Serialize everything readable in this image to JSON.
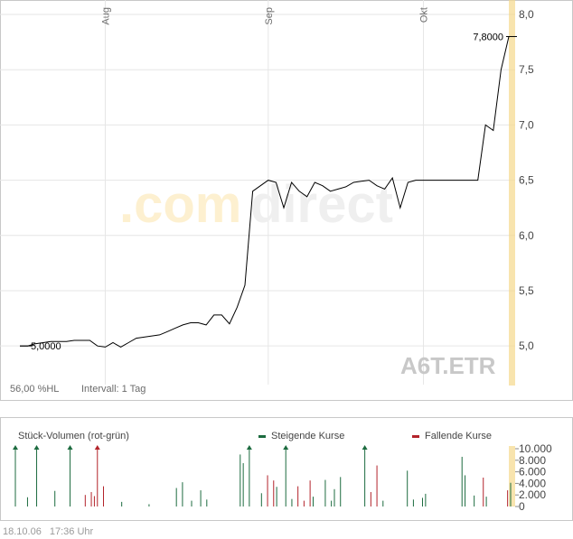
{
  "watermark": {
    "prefix": ".com",
    "suffix": "direct"
  },
  "symbol": "A6T.ETR",
  "info": {
    "hl": "56,00 %HL",
    "interval": "Intervall: 1 Tag"
  },
  "footer": {
    "date": "18.10.06",
    "time": "17:36 Uhr"
  },
  "colors": {
    "rising": "#1c6b3f",
    "falling": "#b3232a",
    "line": "#000000",
    "highlight": "#f5d88c"
  },
  "chart_data": [
    {
      "type": "line",
      "ylim": [
        4.65,
        8.0
      ],
      "y_ticks": [
        "8,0",
        "7,5",
        "7,0",
        "6,5",
        "6,0",
        "5,5",
        "5,0"
      ],
      "y_tick_values": [
        8.0,
        7.5,
        7.0,
        6.5,
        6.0,
        5.5,
        5.0
      ],
      "x_month_labels": [
        {
          "label": "Aug",
          "day": 11
        },
        {
          "label": "Sep",
          "day": 32
        },
        {
          "label": "Okt",
          "day": 52
        }
      ],
      "start_label": "5,0000",
      "last_label": "7,8000",
      "x": [
        0,
        1,
        2,
        3,
        4,
        5,
        6,
        7,
        8,
        9,
        10,
        11,
        12,
        13,
        14,
        15,
        16,
        17,
        18,
        19,
        20,
        21,
        22,
        23,
        24,
        25,
        26,
        27,
        28,
        29,
        30,
        31,
        32,
        33,
        34,
        35,
        36,
        37,
        38,
        39,
        40,
        41,
        42,
        43,
        44,
        45,
        46,
        47,
        48,
        49,
        50,
        51,
        52,
        53,
        54,
        55,
        56,
        57,
        58,
        59,
        60,
        61,
        62,
        63
      ],
      "values": [
        5.0,
        5.0,
        5.02,
        5.03,
        5.04,
        5.04,
        5.04,
        5.05,
        5.05,
        5.05,
        5.0,
        4.99,
        5.03,
        4.99,
        5.03,
        5.07,
        5.08,
        5.09,
        5.1,
        5.13,
        5.16,
        5.19,
        5.21,
        5.21,
        5.19,
        5.28,
        5.28,
        5.2,
        5.35,
        5.55,
        6.4,
        6.45,
        6.5,
        6.48,
        6.25,
        6.48,
        6.4,
        6.35,
        6.48,
        6.45,
        6.4,
        6.42,
        6.44,
        6.48,
        6.49,
        6.5,
        6.45,
        6.42,
        6.52,
        6.25,
        6.48,
        6.5,
        6.5,
        6.5,
        6.5,
        6.5,
        6.5,
        6.5,
        6.5,
        6.5,
        7.0,
        6.95,
        7.5,
        7.8
      ]
    },
    {
      "type": "bar",
      "title": "Stück-Volumen (rot-grün)",
      "legend": [
        {
          "name": "Steigende Kurse",
          "color": "#1c6b3f"
        },
        {
          "name": "Fallende Kurse",
          "color": "#b3232a"
        }
      ],
      "ylim": [
        0,
        10000
      ],
      "y_ticks": [
        "10.000",
        "8.000",
        "6.000",
        "4.000",
        "2.000",
        "0"
      ],
      "y_tick_values": [
        10000,
        8000,
        6000,
        4000,
        2000,
        0
      ],
      "values": [
        10000,
        0,
        0,
        0,
        1600,
        0,
        0,
        10000,
        0,
        0,
        0,
        0,
        0,
        2700,
        0,
        0,
        0,
        0,
        10000,
        0,
        0,
        0,
        0,
        2000,
        0,
        2500,
        1800,
        10000,
        0,
        3500,
        0,
        0,
        0,
        0,
        0,
        800,
        0,
        0,
        0,
        0,
        0,
        0,
        0,
        0,
        400,
        0,
        0,
        0,
        0,
        0,
        0,
        0,
        0,
        3200,
        0,
        4200,
        0,
        0,
        1000,
        0,
        0,
        2800,
        0,
        1200,
        0,
        0,
        0,
        0,
        0,
        0,
        0,
        0,
        0,
        0,
        9000,
        7500,
        0,
        10000,
        0,
        0,
        0,
        2300,
        0,
        5400,
        0,
        4500,
        3400,
        0,
        0,
        10000,
        0,
        1300,
        0,
        3500,
        0,
        1000,
        0,
        4500,
        1700,
        0,
        0,
        0,
        4600,
        0,
        1000,
        3000,
        0,
        5100,
        0,
        0,
        0,
        0,
        0,
        0,
        0,
        10000,
        0,
        2500,
        0,
        7100,
        0,
        1000,
        0,
        0,
        0,
        0,
        0,
        0,
        0,
        6200,
        0,
        1200,
        0,
        0,
        1500,
        2200,
        0,
        0,
        0,
        0,
        0,
        0,
        0,
        0,
        0,
        0,
        0,
        8600,
        5400,
        0,
        0,
        1900,
        0,
        0,
        5000,
        1700,
        0,
        0,
        0,
        0,
        0,
        0,
        2800,
        4100
      ],
      "directions": [
        "up",
        "up",
        "up",
        "up",
        "up",
        "up",
        "up",
        "up",
        "up",
        "up",
        "up",
        "up",
        "up",
        "up",
        "up",
        "up",
        "up",
        "up",
        "up",
        "up",
        "up",
        "up",
        "up",
        "down",
        "up",
        "down",
        "down",
        "down",
        "up",
        "down",
        "up",
        "up",
        "up",
        "up",
        "up",
        "up",
        "up",
        "up",
        "up",
        "up",
        "up",
        "up",
        "up",
        "up",
        "up",
        "up",
        "up",
        "up",
        "up",
        "up",
        "up",
        "up",
        "up",
        "up",
        "up",
        "up",
        "up",
        "up",
        "up",
        "down",
        "up",
        "up",
        "down",
        "up",
        "up",
        "up",
        "up",
        "up",
        "up",
        "up",
        "up",
        "up",
        "up",
        "up",
        "up",
        "up",
        "up",
        "up",
        "up",
        "up",
        "up",
        "up",
        "up",
        "down",
        "up",
        "down",
        "up",
        "up",
        "up",
        "up",
        "up",
        "up",
        "up",
        "down",
        "up",
        "down",
        "down",
        "down",
        "up",
        "up",
        "up",
        "up",
        "up",
        "up",
        "up",
        "up",
        "up",
        "up",
        "up",
        "up",
        "up",
        "up",
        "up",
        "down",
        "up",
        "up",
        "up",
        "down",
        "up",
        "down",
        "up",
        "up",
        "up",
        "up",
        "up",
        "up",
        "up",
        "up",
        "up",
        "up",
        "up",
        "up",
        "up",
        "up",
        "up",
        "up",
        "up",
        "up",
        "up",
        "up",
        "up",
        "up",
        "up",
        "up",
        "up",
        "up",
        "up",
        "up",
        "up",
        "up",
        "up",
        "up",
        "up",
        "up",
        "down",
        "up",
        "up",
        "up",
        "up",
        "up",
        "up",
        "up",
        "down",
        "up"
      ]
    }
  ]
}
